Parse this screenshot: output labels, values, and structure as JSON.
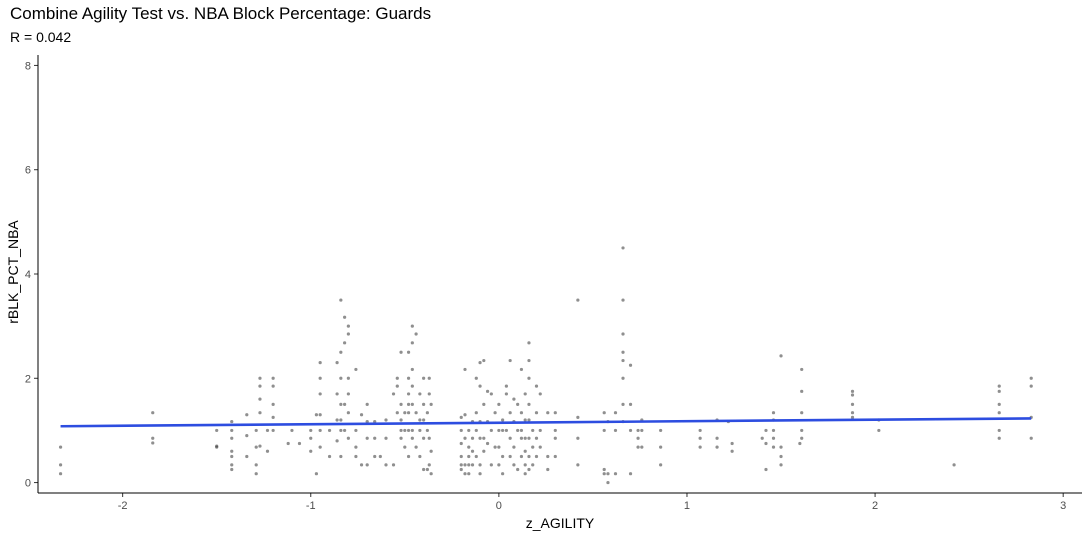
{
  "chart_data": {
    "type": "scatter",
    "title": "Combine Agility Test vs. NBA Block Percentage: Guards",
    "subtitle": "R = 0.042",
    "xlabel": "z_AGILITY",
    "ylabel": "rBLK_PCT_NBA",
    "xlim": [
      -2.45,
      3.1
    ],
    "ylim": [
      -0.2,
      8.2
    ],
    "xticks": [
      -2,
      -1,
      0,
      1,
      2,
      3
    ],
    "yticks": [
      0,
      2,
      4,
      6,
      8
    ],
    "grid": false,
    "point_color": "#333333",
    "trend_color": "#2d4de0",
    "trendline": {
      "x": [
        -2.33,
        2.83
      ],
      "y": [
        1.08,
        1.23
      ]
    },
    "points": [
      [
        -2.33,
        0.68
      ],
      [
        -2.33,
        0.34
      ],
      [
        -2.33,
        0.17
      ],
      [
        -1.84,
        1.34
      ],
      [
        -1.84,
        0.85
      ],
      [
        -1.84,
        0.76
      ],
      [
        -1.5,
        1.0
      ],
      [
        -1.5,
        0.7
      ],
      [
        -1.5,
        0.68
      ],
      [
        -1.42,
        1.17
      ],
      [
        -1.42,
        1.0
      ],
      [
        -1.42,
        0.85
      ],
      [
        -1.42,
        0.6
      ],
      [
        -1.42,
        0.5
      ],
      [
        -1.42,
        0.34
      ],
      [
        -1.42,
        0.25
      ],
      [
        -1.34,
        1.3
      ],
      [
        -1.34,
        0.9
      ],
      [
        -1.34,
        0.5
      ],
      [
        -1.29,
        1.0
      ],
      [
        -1.29,
        0.68
      ],
      [
        -1.29,
        0.34
      ],
      [
        -1.29,
        0.17
      ],
      [
        -1.27,
        2.0
      ],
      [
        -1.27,
        1.85
      ],
      [
        -1.27,
        1.6
      ],
      [
        -1.27,
        1.34
      ],
      [
        -1.27,
        0.7
      ],
      [
        -1.23,
        1.0
      ],
      [
        -1.23,
        0.6
      ],
      [
        -1.2,
        2.0
      ],
      [
        -1.2,
        1.85
      ],
      [
        -1.2,
        1.5
      ],
      [
        -1.2,
        1.25
      ],
      [
        -1.2,
        1.0
      ],
      [
        -1.12,
        0.75
      ],
      [
        -1.1,
        1.0
      ],
      [
        -1.06,
        0.75
      ],
      [
        -1.0,
        1.0
      ],
      [
        -1.0,
        0.85
      ],
      [
        -1.0,
        0.6
      ],
      [
        -0.97,
        1.3
      ],
      [
        -0.97,
        0.17
      ],
      [
        -0.95,
        2.3
      ],
      [
        -0.95,
        2.0
      ],
      [
        -0.95,
        1.7
      ],
      [
        -0.95,
        1.3
      ],
      [
        -0.95,
        1.0
      ],
      [
        -0.95,
        0.68
      ],
      [
        -0.9,
        1.0
      ],
      [
        -0.9,
        0.5
      ],
      [
        -0.86,
        2.3
      ],
      [
        -0.86,
        1.7
      ],
      [
        -0.86,
        1.2
      ],
      [
        -0.86,
        0.8
      ],
      [
        -0.84,
        3.5
      ],
      [
        -0.84,
        2.5
      ],
      [
        -0.84,
        2.0
      ],
      [
        -0.84,
        1.5
      ],
      [
        -0.84,
        1.2
      ],
      [
        -0.84,
        1.0
      ],
      [
        -0.84,
        0.5
      ],
      [
        -0.82,
        3.17
      ],
      [
        -0.82,
        2.68
      ],
      [
        -0.82,
        1.5
      ],
      [
        -0.82,
        1.0
      ],
      [
        -0.8,
        3.0
      ],
      [
        -0.8,
        2.85
      ],
      [
        -0.8,
        2.0
      ],
      [
        -0.8,
        1.7
      ],
      [
        -0.8,
        1.34
      ],
      [
        -0.8,
        0.85
      ],
      [
        -0.76,
        2.17
      ],
      [
        -0.76,
        1.0
      ],
      [
        -0.76,
        0.68
      ],
      [
        -0.76,
        0.5
      ],
      [
        -0.73,
        1.3
      ],
      [
        -0.73,
        0.34
      ],
      [
        -0.7,
        1.5
      ],
      [
        -0.7,
        1.17
      ],
      [
        -0.7,
        0.85
      ],
      [
        -0.7,
        0.34
      ],
      [
        -0.66,
        1.17
      ],
      [
        -0.66,
        0.85
      ],
      [
        -0.66,
        0.5
      ],
      [
        -0.63,
        0.5
      ],
      [
        -0.6,
        1.2
      ],
      [
        -0.6,
        0.85
      ],
      [
        -0.6,
        0.34
      ],
      [
        -0.56,
        1.7
      ],
      [
        -0.56,
        0.34
      ],
      [
        -0.54,
        2.0
      ],
      [
        -0.54,
        1.85
      ],
      [
        -0.54,
        1.34
      ],
      [
        -0.52,
        2.5
      ],
      [
        -0.52,
        1.5
      ],
      [
        -0.52,
        1.2
      ],
      [
        -0.52,
        1.0
      ],
      [
        -0.52,
        0.85
      ],
      [
        -0.5,
        1.34
      ],
      [
        -0.5,
        1.0
      ],
      [
        -0.5,
        0.68
      ],
      [
        -0.48,
        2.5
      ],
      [
        -0.48,
        2.0
      ],
      [
        -0.48,
        1.7
      ],
      [
        -0.48,
        1.5
      ],
      [
        -0.48,
        1.34
      ],
      [
        -0.48,
        1.0
      ],
      [
        -0.48,
        0.5
      ],
      [
        -0.46,
        3.0
      ],
      [
        -0.46,
        2.68
      ],
      [
        -0.46,
        2.17
      ],
      [
        -0.46,
        1.85
      ],
      [
        -0.46,
        1.5
      ],
      [
        -0.46,
        1.0
      ],
      [
        -0.46,
        0.85
      ],
      [
        -0.44,
        2.85
      ],
      [
        -0.44,
        1.34
      ],
      [
        -0.44,
        0.68
      ],
      [
        -0.42,
        1.7
      ],
      [
        -0.42,
        1.2
      ],
      [
        -0.42,
        1.0
      ],
      [
        -0.42,
        0.5
      ],
      [
        -0.4,
        2.0
      ],
      [
        -0.4,
        1.5
      ],
      [
        -0.4,
        1.2
      ],
      [
        -0.4,
        0.85
      ],
      [
        -0.4,
        0.25
      ],
      [
        -0.38,
        1.34
      ],
      [
        -0.38,
        1.0
      ],
      [
        -0.38,
        0.25
      ],
      [
        -0.37,
        2.0
      ],
      [
        -0.37,
        1.7
      ],
      [
        -0.37,
        0.85
      ],
      [
        -0.37,
        0.34
      ],
      [
        -0.36,
        1.5
      ],
      [
        -0.36,
        0.6
      ],
      [
        -0.36,
        0.17
      ],
      [
        -0.2,
        1.25
      ],
      [
        -0.2,
        1.0
      ],
      [
        -0.2,
        0.75
      ],
      [
        -0.2,
        0.5
      ],
      [
        -0.2,
        0.34
      ],
      [
        -0.2,
        0.25
      ],
      [
        -0.18,
        2.17
      ],
      [
        -0.18,
        1.3
      ],
      [
        -0.18,
        0.85
      ],
      [
        -0.18,
        0.34
      ],
      [
        -0.18,
        0.17
      ],
      [
        -0.16,
        1.0
      ],
      [
        -0.16,
        0.68
      ],
      [
        -0.16,
        0.5
      ],
      [
        -0.16,
        0.34
      ],
      [
        -0.16,
        0.17
      ],
      [
        -0.14,
        1.17
      ],
      [
        -0.14,
        0.85
      ],
      [
        -0.14,
        0.6
      ],
      [
        -0.14,
        0.34
      ],
      [
        -0.12,
        2.0
      ],
      [
        -0.12,
        1.34
      ],
      [
        -0.12,
        1.0
      ],
      [
        -0.12,
        0.5
      ],
      [
        -0.1,
        2.3
      ],
      [
        -0.1,
        1.85
      ],
      [
        -0.1,
        1.17
      ],
      [
        -0.1,
        0.85
      ],
      [
        -0.1,
        0.34
      ],
      [
        -0.1,
        0.17
      ],
      [
        -0.08,
        2.34
      ],
      [
        -0.08,
        1.5
      ],
      [
        -0.08,
        0.85
      ],
      [
        -0.08,
        0.6
      ],
      [
        -0.06,
        1.75
      ],
      [
        -0.06,
        1.17
      ],
      [
        -0.06,
        0.75
      ],
      [
        -0.04,
        1.7
      ],
      [
        -0.04,
        1.0
      ],
      [
        -0.04,
        0.34
      ],
      [
        -0.02,
        1.34
      ],
      [
        -0.02,
        0.68
      ],
      [
        0.0,
        1.5
      ],
      [
        0.0,
        1.0
      ],
      [
        0.0,
        0.68
      ],
      [
        0.0,
        0.34
      ],
      [
        0.02,
        1.2
      ],
      [
        0.02,
        1.0
      ],
      [
        0.02,
        0.5
      ],
      [
        0.02,
        0.17
      ],
      [
        0.04,
        1.85
      ],
      [
        0.04,
        1.7
      ],
      [
        0.04,
        1.0
      ],
      [
        0.06,
        2.34
      ],
      [
        0.06,
        1.34
      ],
      [
        0.06,
        0.85
      ],
      [
        0.06,
        0.5
      ],
      [
        0.08,
        1.6
      ],
      [
        0.08,
        1.17
      ],
      [
        0.08,
        0.68
      ],
      [
        0.08,
        0.34
      ],
      [
        0.1,
        1.5
      ],
      [
        0.1,
        1.0
      ],
      [
        0.1,
        0.25
      ],
      [
        0.12,
        2.17
      ],
      [
        0.12,
        1.34
      ],
      [
        0.12,
        1.0
      ],
      [
        0.12,
        0.85
      ],
      [
        0.12,
        0.5
      ],
      [
        0.14,
        1.7
      ],
      [
        0.14,
        1.2
      ],
      [
        0.14,
        0.85
      ],
      [
        0.14,
        0.6
      ],
      [
        0.14,
        0.34
      ],
      [
        0.14,
        0.17
      ],
      [
        0.16,
        2.68
      ],
      [
        0.16,
        2.34
      ],
      [
        0.16,
        2.0
      ],
      [
        0.16,
        1.5
      ],
      [
        0.16,
        1.2
      ],
      [
        0.16,
        0.85
      ],
      [
        0.16,
        0.5
      ],
      [
        0.16,
        0.25
      ],
      [
        0.18,
        1.0
      ],
      [
        0.18,
        0.68
      ],
      [
        0.18,
        0.34
      ],
      [
        0.2,
        1.85
      ],
      [
        0.2,
        1.34
      ],
      [
        0.2,
        0.85
      ],
      [
        0.2,
        0.5
      ],
      [
        0.22,
        1.7
      ],
      [
        0.22,
        1.0
      ],
      [
        0.22,
        0.68
      ],
      [
        0.26,
        1.34
      ],
      [
        0.26,
        0.5
      ],
      [
        0.26,
        0.25
      ],
      [
        0.3,
        1.34
      ],
      [
        0.3,
        1.0
      ],
      [
        0.3,
        0.85
      ],
      [
        0.3,
        0.5
      ],
      [
        0.42,
        3.5
      ],
      [
        0.42,
        1.25
      ],
      [
        0.42,
        0.85
      ],
      [
        0.42,
        0.34
      ],
      [
        0.56,
        1.34
      ],
      [
        0.56,
        1.0
      ],
      [
        0.56,
        0.25
      ],
      [
        0.56,
        0.17
      ],
      [
        0.58,
        1.17
      ],
      [
        0.58,
        0.17
      ],
      [
        0.58,
        0.0
      ],
      [
        0.62,
        1.34
      ],
      [
        0.62,
        1.0
      ],
      [
        0.62,
        0.17
      ],
      [
        0.66,
        4.5
      ],
      [
        0.66,
        3.5
      ],
      [
        0.66,
        2.85
      ],
      [
        0.66,
        2.5
      ],
      [
        0.66,
        2.34
      ],
      [
        0.66,
        2.0
      ],
      [
        0.66,
        1.5
      ],
      [
        0.66,
        1.17
      ],
      [
        0.7,
        2.25
      ],
      [
        0.7,
        1.5
      ],
      [
        0.7,
        1.0
      ],
      [
        0.7,
        0.17
      ],
      [
        0.74,
        1.0
      ],
      [
        0.74,
        0.85
      ],
      [
        0.74,
        0.68
      ],
      [
        0.76,
        1.2
      ],
      [
        0.76,
        1.0
      ],
      [
        0.76,
        0.68
      ],
      [
        0.86,
        1.0
      ],
      [
        0.86,
        0.68
      ],
      [
        0.86,
        0.34
      ],
      [
        1.07,
        1.0
      ],
      [
        1.07,
        0.85
      ],
      [
        1.07,
        0.68
      ],
      [
        1.16,
        1.2
      ],
      [
        1.16,
        0.85
      ],
      [
        1.16,
        0.68
      ],
      [
        1.22,
        1.17
      ],
      [
        1.24,
        0.75
      ],
      [
        1.24,
        0.6
      ],
      [
        1.4,
        0.85
      ],
      [
        1.42,
        1.0
      ],
      [
        1.42,
        0.75
      ],
      [
        1.42,
        0.25
      ],
      [
        1.46,
        1.34
      ],
      [
        1.46,
        1.2
      ],
      [
        1.46,
        1.0
      ],
      [
        1.46,
        0.85
      ],
      [
        1.46,
        0.68
      ],
      [
        1.5,
        2.43
      ],
      [
        1.5,
        0.68
      ],
      [
        1.5,
        0.5
      ],
      [
        1.5,
        0.34
      ],
      [
        1.6,
        0.75
      ],
      [
        1.61,
        2.17
      ],
      [
        1.61,
        1.75
      ],
      [
        1.61,
        1.34
      ],
      [
        1.61,
        1.0
      ],
      [
        1.61,
        0.85
      ],
      [
        1.88,
        1.75
      ],
      [
        1.88,
        1.68
      ],
      [
        1.88,
        1.5
      ],
      [
        1.88,
        1.34
      ],
      [
        1.88,
        1.25
      ],
      [
        2.02,
        1.2
      ],
      [
        2.02,
        1.0
      ],
      [
        2.42,
        0.34
      ],
      [
        2.66,
        1.85
      ],
      [
        2.66,
        1.75
      ],
      [
        2.66,
        1.5
      ],
      [
        2.66,
        1.34
      ],
      [
        2.66,
        1.0
      ],
      [
        2.66,
        0.85
      ],
      [
        2.83,
        2.0
      ],
      [
        2.83,
        1.85
      ],
      [
        2.83,
        1.25
      ],
      [
        2.83,
        0.85
      ]
    ]
  }
}
